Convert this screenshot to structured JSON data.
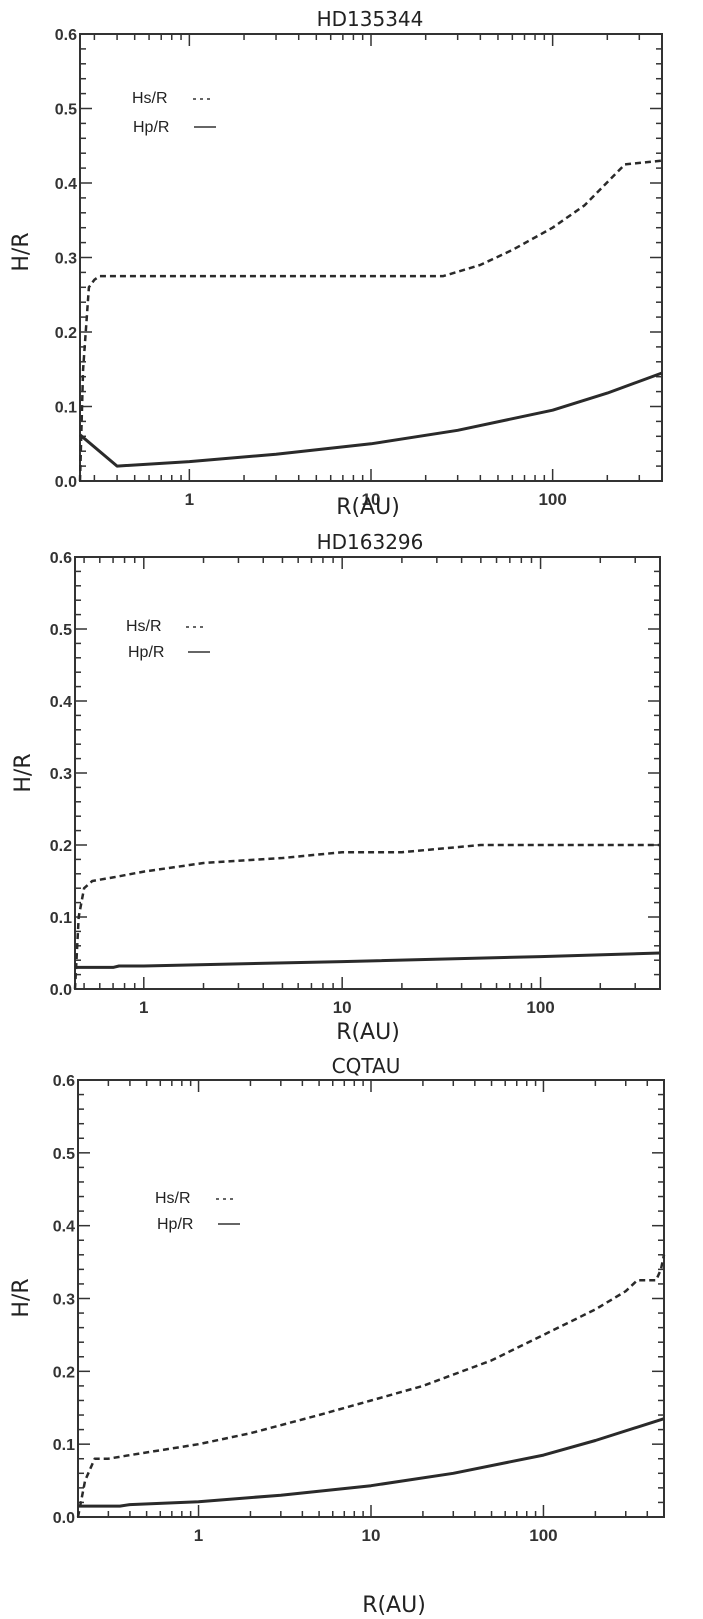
{
  "chart_data": [
    {
      "type": "line",
      "title": "HD135344",
      "xlabel": "R(AU)",
      "ylabel": "H/R",
      "xscale": "log",
      "xlim": [
        0.25,
        400
      ],
      "ylim": [
        0,
        0.6
      ],
      "xticks": [
        {
          "value": 1,
          "label": "1"
        },
        {
          "value": 10,
          "label": "10"
        },
        {
          "value": 100,
          "label": "100"
        }
      ],
      "yticks": [
        {
          "value": 0.0,
          "label": "0.0"
        },
        {
          "value": 0.1,
          "label": "0.1"
        },
        {
          "value": 0.2,
          "label": "0.2"
        },
        {
          "value": 0.3,
          "label": "0.3"
        },
        {
          "value": 0.4,
          "label": "0.4"
        },
        {
          "value": 0.5,
          "label": "0.5"
        },
        {
          "value": 0.6,
          "label": "0.6"
        }
      ],
      "legend_position": "top-left",
      "series": [
        {
          "name": "Hs/R",
          "style": "dashed",
          "x": [
            0.25,
            0.26,
            0.28,
            0.3,
            0.32,
            25,
            40,
            60,
            100,
            150,
            250,
            400
          ],
          "y": [
            0.0,
            0.15,
            0.26,
            0.27,
            0.275,
            0.275,
            0.29,
            0.31,
            0.34,
            0.37,
            0.425,
            0.43
          ]
        },
        {
          "name": "Hp/R",
          "style": "solid",
          "x": [
            0.25,
            0.4,
            1,
            3,
            10,
            30,
            100,
            200,
            400
          ],
          "y": [
            0.062,
            0.02,
            0.026,
            0.036,
            0.05,
            0.068,
            0.095,
            0.118,
            0.145
          ]
        }
      ]
    },
    {
      "type": "line",
      "title": "HD163296",
      "xlabel": "R(AU)",
      "ylabel": "H/R",
      "xscale": "log",
      "xlim": [
        0.45,
        400
      ],
      "ylim": [
        0,
        0.6
      ],
      "xticks": [
        {
          "value": 1,
          "label": "1"
        },
        {
          "value": 10,
          "label": "10"
        },
        {
          "value": 100,
          "label": "100"
        }
      ],
      "yticks": [
        {
          "value": 0.0,
          "label": "0.0"
        },
        {
          "value": 0.1,
          "label": "0.1"
        },
        {
          "value": 0.2,
          "label": "0.2"
        },
        {
          "value": 0.3,
          "label": "0.3"
        },
        {
          "value": 0.4,
          "label": "0.4"
        },
        {
          "value": 0.5,
          "label": "0.5"
        },
        {
          "value": 0.6,
          "label": "0.6"
        }
      ],
      "legend_position": "top-left",
      "series": [
        {
          "name": "Hs/R",
          "style": "dashed",
          "x": [
            0.45,
            0.47,
            0.5,
            0.55,
            0.7,
            1,
            2,
            5,
            10,
            20,
            50,
            100,
            400
          ],
          "y": [
            0.0,
            0.1,
            0.14,
            0.15,
            0.155,
            0.163,
            0.175,
            0.182,
            0.19,
            0.19,
            0.2,
            0.2,
            0.2
          ]
        },
        {
          "name": "Hp/R",
          "style": "solid",
          "x": [
            0.45,
            0.7,
            0.75,
            1,
            10,
            100,
            400
          ],
          "y": [
            0.03,
            0.03,
            0.032,
            0.032,
            0.038,
            0.045,
            0.05
          ]
        }
      ]
    },
    {
      "type": "line",
      "title": "CQTAU",
      "xlabel": "R(AU)",
      "ylabel": "H/R",
      "xscale": "log",
      "xlim": [
        0.2,
        500
      ],
      "ylim": [
        0,
        0.6
      ],
      "xticks": [
        {
          "value": 1,
          "label": "1"
        },
        {
          "value": 10,
          "label": "10"
        },
        {
          "value": 100,
          "label": "100"
        }
      ],
      "yticks": [
        {
          "value": 0.0,
          "label": "0.0"
        },
        {
          "value": 0.1,
          "label": "0.1"
        },
        {
          "value": 0.2,
          "label": "0.2"
        },
        {
          "value": 0.3,
          "label": "0.3"
        },
        {
          "value": 0.4,
          "label": "0.4"
        },
        {
          "value": 0.5,
          "label": "0.5"
        },
        {
          "value": 0.6,
          "label": "0.6"
        }
      ],
      "legend_position": "top-left",
      "series": [
        {
          "name": "Hs/R",
          "style": "dashed",
          "x": [
            0.2,
            0.22,
            0.25,
            0.3,
            0.4,
            1,
            2,
            5,
            10,
            20,
            50,
            100,
            200,
            300,
            350,
            450,
            480,
            500
          ],
          "y": [
            0.0,
            0.05,
            0.08,
            0.08,
            0.085,
            0.1,
            0.115,
            0.14,
            0.16,
            0.18,
            0.215,
            0.25,
            0.285,
            0.31,
            0.325,
            0.325,
            0.34,
            0.36
          ]
        },
        {
          "name": "Hp/R",
          "style": "solid",
          "x": [
            0.2,
            0.35,
            0.4,
            1,
            3,
            10,
            30,
            100,
            200,
            500
          ],
          "y": [
            0.015,
            0.015,
            0.017,
            0.021,
            0.03,
            0.043,
            0.06,
            0.085,
            0.105,
            0.135
          ]
        }
      ]
    }
  ]
}
